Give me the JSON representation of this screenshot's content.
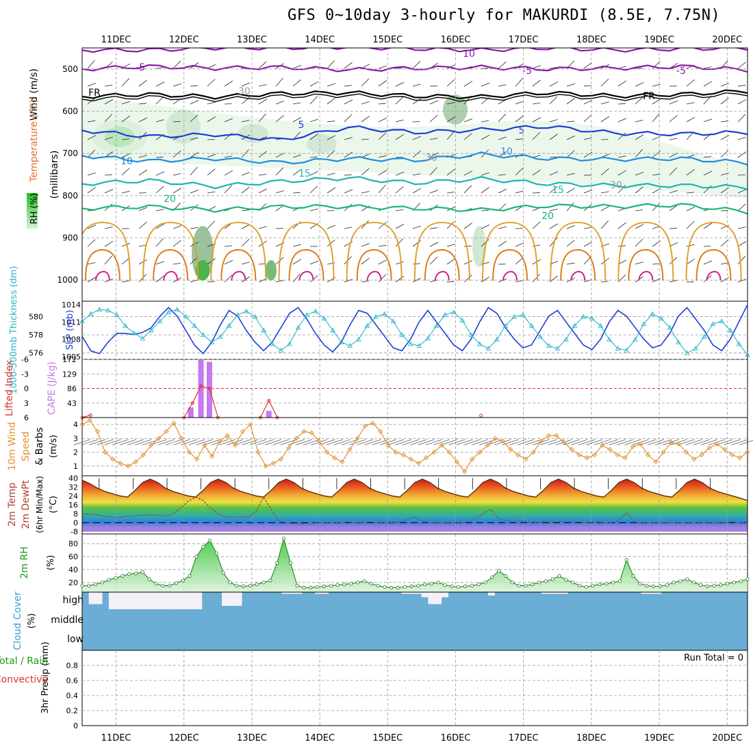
{
  "title": "GFS 0~10day 3-hourly for MAKURDI (8.5E, 7.75N)",
  "colors": {
    "purple": "#8a1aa8",
    "black": "#000000",
    "blue": "#1a3ed6",
    "lightblue": "#1f8de0",
    "teal": "#1ab5b0",
    "green": "#1ab57a",
    "orange": "#e0a028",
    "darkorange": "#e07a18",
    "magenta": "#d0208a",
    "slp": "#1a3ed6",
    "thickness": "#2ab5c8",
    "cape": "#c678f0",
    "li": "#e03030",
    "wind10": "#e09030",
    "rhline": "#1a8a1a",
    "cloud": "#6aaed6",
    "grid": "#999999"
  },
  "chart_data": [
    {
      "id": "upper-air",
      "type": "contour",
      "title": "Upper-air time-height cross section",
      "ylabel": "(millibars)",
      "axis_label_parts": [
        "RH (%)",
        "Temperature (°C)",
        "Wind (m/s)"
      ],
      "y_ticks": [
        "500",
        "600",
        "700",
        "800",
        "900",
        "1000"
      ],
      "ylim": [
        1050,
        450
      ],
      "contour_labels": [
        "10",
        "-5",
        "5",
        "-5",
        "FR",
        "FR",
        "5",
        "-5",
        "10",
        "10",
        "15",
        "15",
        "20",
        "20",
        "30",
        "30",
        "30"
      ],
      "isotherms": [
        {
          "value": -10,
          "color": "purple",
          "pressure_levels": [
            455,
            455,
            450,
            450,
            448,
            452,
            455,
            450,
            455,
            452,
            450
          ]
        },
        {
          "value": -5,
          "color": "purple",
          "pressure_levels": [
            500,
            494,
            498,
            496,
            502,
            498,
            496,
            500,
            498,
            494,
            502
          ]
        },
        {
          "value": 0,
          "color": "black",
          "pressure_levels": [
            565,
            560,
            566,
            558,
            556,
            564,
            566,
            556,
            564,
            560,
            552
          ]
        },
        {
          "value": 5,
          "color": "blue",
          "pressure_levels": [
            645,
            660,
            655,
            668,
            638,
            650,
            644,
            636,
            652,
            654,
            650
          ]
        },
        {
          "value": 10,
          "color": "lightblue",
          "pressure_levels": [
            705,
            718,
            712,
            722,
            712,
            716,
            702,
            712,
            714,
            712,
            722
          ]
        },
        {
          "value": 15,
          "color": "teal",
          "pressure_levels": [
            772,
            764,
            778,
            766,
            758,
            770,
            760,
            772,
            776,
            776,
            780
          ]
        },
        {
          "value": 20,
          "color": "green",
          "pressure_levels": [
            830,
            826,
            834,
            826,
            826,
            830,
            834,
            824,
            826,
            822,
            838
          ]
        }
      ]
    },
    {
      "id": "thickness-slp",
      "type": "line",
      "ylabel_left": "1000-500mb Thickness (dm)",
      "ylabel_right": "SLP (mb)",
      "left_ticks": [
        "580",
        "578",
        "576"
      ],
      "right_ticks": [
        "1014",
        "1011",
        "1008",
        "1005"
      ],
      "series": [
        {
          "name": "SLP",
          "color": "slp",
          "units": "mb",
          "values": [
            1008.5,
            1006.0,
            1005.5,
            1007.5,
            1009.0,
            1009.0,
            1008.8,
            1009.2,
            1010.0,
            1012.0,
            1013.5,
            1012.0,
            1009.5,
            1007.0,
            1005.5,
            1007.5,
            1010.5,
            1013.0,
            1012.0,
            1009.5,
            1007.5,
            1006.0,
            1007.5,
            1010.0,
            1012.5,
            1013.5,
            1011.5,
            1009.0,
            1007.0,
            1005.8,
            1007.5,
            1010.5,
            1013.0,
            1012.5,
            1010.5,
            1008.5,
            1006.5,
            1006.0,
            1008.0,
            1011.0,
            1013.0,
            1011.0,
            1009.0,
            1007.0,
            1006.0,
            1008.0,
            1011.0,
            1013.5,
            1012.5,
            1010.0,
            1008.0,
            1006.5,
            1007.0,
            1009.5,
            1012.0,
            1013.0,
            1011.0,
            1009.0,
            1007.0,
            1006.2,
            1008.0,
            1011.0,
            1013.0,
            1012.0,
            1010.0,
            1008.0,
            1006.5,
            1007.0,
            1009.0,
            1012.0,
            1013.5,
            1011.5,
            1009.5,
            1007.0,
            1006.0,
            1008.0,
            1011.0,
            1014.0
          ]
        },
        {
          "name": "Thickness",
          "color": "thickness",
          "units": "dm",
          "values": [
            579.5,
            580.3,
            580.8,
            580.7,
            580.2,
            579.0,
            578.2,
            577.6,
            578.5,
            579.5,
            580.5,
            580.8,
            580.0,
            579.0,
            578.0,
            577.2,
            577.8,
            579.0,
            580.2,
            580.6,
            580.0,
            578.5,
            577.0,
            576.3,
            577.0,
            578.8,
            580.2,
            580.6,
            579.8,
            578.5,
            577.2,
            576.8,
            577.5,
            579.0,
            580.0,
            580.3,
            579.5,
            578.0,
            577.0,
            576.8,
            577.6,
            579.0,
            580.2,
            580.5,
            579.6,
            578.0,
            577.0,
            576.5,
            577.5,
            579.0,
            580.0,
            580.2,
            579.0,
            577.8,
            576.8,
            576.5,
            577.5,
            579.0,
            580.0,
            579.8,
            579.0,
            577.5,
            576.5,
            576.3,
            577.5,
            579.2,
            580.3,
            579.8,
            578.8,
            577.2,
            576.0,
            576.5,
            577.8,
            579.2,
            579.5,
            578.5,
            577.0,
            575.8
          ]
        }
      ]
    },
    {
      "id": "cape-li",
      "type": "bar",
      "ylabel_left": "Lifted Index",
      "ylabel_right": "CAPE (J/kg)",
      "left_ticks": [
        "-6",
        "-3",
        "0",
        "3",
        "6"
      ],
      "right_ticks": [
        "172",
        "129",
        "86",
        "43"
      ],
      "cape_bars": [
        {
          "x": 12.1,
          "value": 30
        },
        {
          "x": 12.25,
          "value": 172
        },
        {
          "x": 12.375,
          "value": 165
        },
        {
          "x": 13.25,
          "value": 20
        }
      ],
      "li_series": {
        "x": [
          10.5,
          10.625,
          12.0,
          12.125,
          12.25,
          12.375,
          12.5,
          13.125,
          13.25,
          13.375,
          16.375
        ],
        "values": [
          6,
          5.5,
          6,
          3,
          -0.5,
          0,
          6,
          6,
          2.5,
          6,
          5.6
        ]
      }
    },
    {
      "id": "wind10m",
      "type": "line",
      "ylabel": "10m Wind Speed & Barbs (m/s)",
      "y_ticks": [
        "4",
        "3",
        "2",
        "1"
      ],
      "values": [
        4.0,
        4.3,
        3.5,
        2.0,
        1.5,
        1.2,
        1.0,
        1.3,
        1.8,
        2.5,
        3.0,
        3.5,
        4.1,
        3.0,
        2.0,
        1.5,
        2.5,
        1.7,
        2.8,
        3.2,
        2.5,
        3.5,
        4.0,
        2.0,
        1.0,
        1.2,
        1.5,
        2.3,
        3.0,
        3.5,
        3.4,
        2.8,
        2.0,
        1.6,
        1.3,
        2.2,
        3.0,
        3.9,
        4.1,
        3.5,
        2.5,
        2.0,
        1.8,
        1.5,
        1.2,
        1.6,
        2.0,
        2.5,
        2.0,
        1.3,
        0.6,
        1.5,
        2.0,
        2.5,
        3.0,
        2.8,
        2.2,
        1.8,
        1.5,
        2.0,
        2.8,
        3.2,
        3.2,
        2.7,
        2.2,
        1.8,
        1.6,
        1.8,
        2.5,
        2.2,
        1.8,
        1.6,
        2.4,
        2.6,
        1.8,
        1.3,
        2.0,
        2.7,
        2.6,
        2.0,
        1.5,
        1.8,
        2.3,
        2.6,
        2.2,
        1.8,
        1.6,
        2.0
      ]
    },
    {
      "id": "temp2m",
      "type": "area",
      "ylabel": "2m Temp 2m DewPt (6hr Min/Max) (°C)",
      "y_ticks": [
        "40",
        "32",
        "24",
        "16",
        "8",
        "0",
        "-8"
      ],
      "temp_values": [
        38,
        35,
        31,
        28,
        26,
        24,
        23,
        29,
        36,
        39,
        36,
        31,
        28,
        26,
        24,
        23,
        29,
        36,
        39,
        36,
        31,
        28,
        26,
        24,
        23,
        29,
        36,
        39,
        36,
        31,
        28,
        26,
        24,
        23,
        29,
        36,
        39,
        36,
        31,
        28,
        26,
        24,
        23,
        29,
        36,
        39,
        36,
        31,
        28,
        26,
        24,
        23,
        29,
        36,
        39,
        36,
        31,
        28,
        26,
        24,
        23,
        29,
        36,
        39,
        36,
        31,
        28,
        26,
        24,
        23,
        29,
        36,
        39,
        36,
        31,
        28,
        26,
        24,
        23,
        29,
        36,
        39,
        36,
        31,
        28,
        26,
        24,
        22,
        20
      ],
      "dewpt_values": [
        8,
        8,
        7,
        6,
        5,
        5,
        6,
        6,
        7,
        7,
        7,
        6,
        8,
        13,
        19,
        23,
        20,
        13,
        8,
        5,
        5,
        5,
        5,
        10,
        23,
        12,
        2,
        0,
        -1,
        -1,
        -1,
        0,
        0,
        0,
        0,
        1,
        0,
        0,
        1,
        0,
        0,
        0,
        1,
        3,
        5,
        2,
        0,
        0,
        0,
        0,
        0,
        1,
        4,
        8,
        12,
        4,
        2,
        1,
        2,
        1,
        0,
        1,
        1,
        1,
        1,
        1,
        1,
        0,
        1,
        0,
        0,
        2,
        9,
        1,
        0,
        0,
        0,
        0,
        0,
        0,
        0,
        0,
        0,
        0,
        0,
        0,
        1,
        0,
        0
      ]
    },
    {
      "id": "rh2m",
      "type": "area",
      "ylabel": "2m RH (%)",
      "y_ticks": [
        "80",
        "60",
        "40",
        "20"
      ],
      "values": [
        15,
        15,
        17,
        20,
        24,
        27,
        30,
        33,
        34,
        36,
        25,
        18,
        15,
        15,
        19,
        23,
        30,
        60,
        75,
        85,
        65,
        35,
        20,
        15,
        14,
        15,
        17,
        20,
        23,
        50,
        88,
        50,
        15,
        12,
        12,
        13,
        14,
        15,
        16,
        17,
        18,
        20,
        22,
        18,
        15,
        13,
        12,
        12,
        13,
        14,
        15,
        17,
        18,
        20,
        16,
        14,
        13,
        14,
        15,
        17,
        20,
        28,
        38,
        30,
        20,
        15,
        15,
        17,
        20,
        22,
        25,
        30,
        24,
        20,
        15,
        13,
        15,
        17,
        18,
        20,
        22,
        55,
        30,
        18,
        15,
        14,
        14,
        16,
        20,
        22,
        25,
        20,
        16,
        14,
        15,
        16,
        18,
        20,
        22,
        25
      ]
    },
    {
      "id": "cloud",
      "type": "bar",
      "ylabel": "Cloud Cover (%)",
      "y_ticks": [
        "high",
        "middle",
        "low"
      ],
      "high_cloud_pct": [
        0,
        70,
        70,
        0,
        100,
        100,
        100,
        100,
        100,
        100,
        100,
        100,
        100,
        100,
        100,
        100,
        100,
        100,
        0,
        0,
        0,
        80,
        80,
        80,
        0,
        0,
        0,
        0,
        0,
        0,
        10,
        10,
        10,
        0,
        0,
        10,
        10,
        0,
        0,
        0,
        0,
        0,
        0,
        0,
        0,
        0,
        0,
        0,
        10,
        10,
        10,
        30,
        70,
        70,
        30,
        0,
        0,
        0,
        0,
        0,
        0,
        20,
        0,
        0,
        0,
        0,
        0,
        0,
        0,
        10,
        10,
        10,
        10,
        0,
        0,
        0,
        0,
        0,
        0,
        0,
        0,
        0,
        0,
        0,
        10,
        10,
        10,
        0,
        0,
        0,
        0,
        0,
        0,
        0,
        0,
        0,
        0,
        0,
        0,
        0
      ]
    },
    {
      "id": "precip",
      "type": "bar",
      "ylabel": "3hr Precip (mm)",
      "axis_label_parts": [
        "Total / Rain",
        "Convective"
      ],
      "y_ticks": [
        "0.8",
        "0.6",
        "0.4",
        "0.2",
        "0"
      ],
      "ylim": [
        0,
        1
      ],
      "run_total": "Run Total = 0",
      "values": []
    }
  ],
  "x_axis": {
    "day_labels": [
      "11DEC",
      "12DEC",
      "13DEC",
      "14DEC",
      "15DEC",
      "16DEC",
      "17DEC",
      "18DEC",
      "19DEC",
      "20DEC"
    ],
    "day_positions": [
      11,
      12,
      13,
      14,
      15,
      16,
      17,
      18,
      19,
      20
    ],
    "xlim": [
      10.5,
      20.3
    ]
  }
}
